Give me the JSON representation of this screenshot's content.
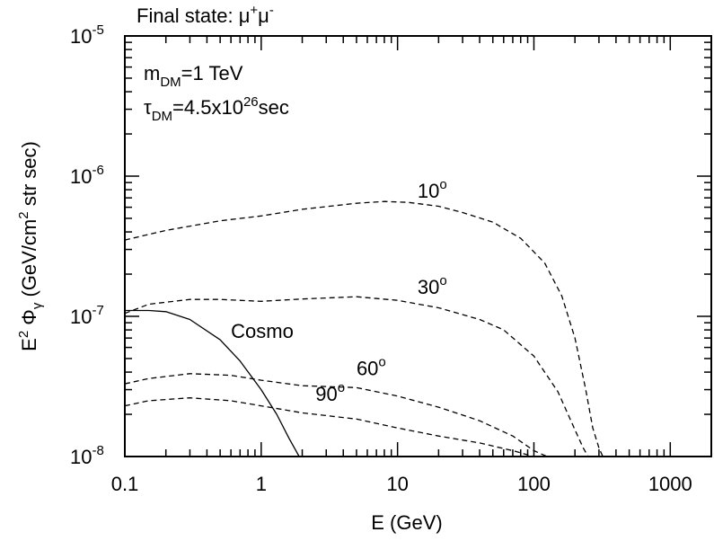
{
  "chart_data": {
    "type": "line",
    "title": "Final state: μ⁺μ⁻",
    "title_parts": {
      "prefix": "Final state: ",
      "base1": "μ",
      "sup1": "+",
      "base2": "μ",
      "sup2": "-"
    },
    "xlabel": "E (GeV)",
    "ylabel_parts": {
      "e": "E",
      "e_sup": "2",
      "phi": " Φ",
      "gamma": "γ",
      "open": " (GeV/cm",
      "cm_sup": "2",
      "close": " str sec)"
    },
    "x_scale": "log",
    "y_scale": "log",
    "xlim": [
      0.1,
      2000
    ],
    "ylim": [
      1e-08,
      1e-05
    ],
    "x_ticks": [
      {
        "value": 0.1,
        "label": "0.1"
      },
      {
        "value": 1,
        "label": "1"
      },
      {
        "value": 10,
        "label": "10"
      },
      {
        "value": 100,
        "label": "100"
      },
      {
        "value": 1000,
        "label": "1000"
      }
    ],
    "y_ticks": [
      {
        "value": 1e-08,
        "base": "10",
        "exp": "-8"
      },
      {
        "value": 1e-07,
        "base": "10",
        "exp": "-7"
      },
      {
        "value": 1e-06,
        "base": "10",
        "exp": "-6"
      },
      {
        "value": 1e-05,
        "base": "10",
        "exp": "-5"
      }
    ],
    "annotations": {
      "mass": {
        "sym": "m",
        "sub": "DM",
        "value": "=1 TeV"
      },
      "lifetime": {
        "sym": "τ",
        "sub": "DM",
        "value": "=4.5x10",
        "sup": "26",
        "unit": "sec"
      }
    },
    "series": [
      {
        "name": "Cosmo",
        "style": "solid",
        "label": {
          "text": "Cosmo",
          "sup": "",
          "at": [
            0.6,
            7e-08
          ]
        },
        "x": [
          0.1,
          0.15,
          0.2,
          0.3,
          0.5,
          0.7,
          1.0,
          1.3,
          1.6,
          1.9
        ],
        "y": [
          1.1e-07,
          1.1e-07,
          1.08e-07,
          9.5e-08,
          6.8e-08,
          4.8e-08,
          3e-08,
          2e-08,
          1.35e-08,
          1e-08
        ]
      },
      {
        "name": "10",
        "style": "dashed",
        "label": {
          "text": "10",
          "sup": "o",
          "at": [
            14,
            7e-07
          ]
        },
        "x": [
          0.1,
          0.2,
          0.5,
          1,
          2,
          5,
          8,
          12,
          20,
          30,
          50,
          80,
          120,
          160,
          200,
          240,
          270,
          300,
          320
        ],
        "y": [
          3.5e-07,
          4.1e-07,
          4.8e-07,
          5.2e-07,
          5.8e-07,
          6.4e-07,
          6.6e-07,
          6.5e-07,
          6.1e-07,
          5.5e-07,
          4.7e-07,
          3.6e-07,
          2.4e-07,
          1.4e-07,
          7e-08,
          3e-08,
          1.6e-08,
          1.15e-08,
          1e-08
        ]
      },
      {
        "name": "30",
        "style": "dashed",
        "label": {
          "text": "30",
          "sup": "o",
          "at": [
            14,
            1.45e-07
          ]
        },
        "x": [
          0.1,
          0.15,
          0.3,
          0.5,
          1,
          2,
          5,
          10,
          20,
          40,
          60,
          100,
          150,
          200,
          230,
          250
        ],
        "y": [
          1.05e-07,
          1.22e-07,
          1.32e-07,
          1.32e-07,
          1.28e-07,
          1.33e-07,
          1.38e-07,
          1.3e-07,
          1.15e-07,
          9.5e-08,
          8e-08,
          5.2e-08,
          2.9e-08,
          1.55e-08,
          1.15e-08,
          1e-08
        ]
      },
      {
        "name": "60",
        "style": "dashed",
        "label": {
          "text": "60",
          "sup": "o",
          "at": [
            5,
            3.8e-08
          ]
        },
        "x": [
          0.1,
          0.15,
          0.3,
          0.6,
          1,
          2,
          5,
          10,
          20,
          40,
          70,
          100,
          125
        ],
        "y": [
          3.3e-08,
          3.6e-08,
          3.9e-08,
          3.8e-08,
          3.5e-08,
          3.2e-08,
          3.1e-08,
          2.7e-08,
          2.25e-08,
          1.8e-08,
          1.4e-08,
          1.1e-08,
          1e-08
        ]
      },
      {
        "name": "90",
        "style": "dashed",
        "label": {
          "text": "90",
          "sup": "o",
          "at": [
            2.5,
            2.5e-08
          ]
        },
        "x": [
          0.1,
          0.15,
          0.3,
          0.6,
          1,
          2,
          5,
          10,
          20,
          40,
          70,
          100
        ],
        "y": [
          2.3e-08,
          2.5e-08,
          2.62e-08,
          2.5e-08,
          2.3e-08,
          2.05e-08,
          1.85e-08,
          1.6e-08,
          1.4e-08,
          1.25e-08,
          1.1e-08,
          1e-08
        ]
      }
    ]
  }
}
